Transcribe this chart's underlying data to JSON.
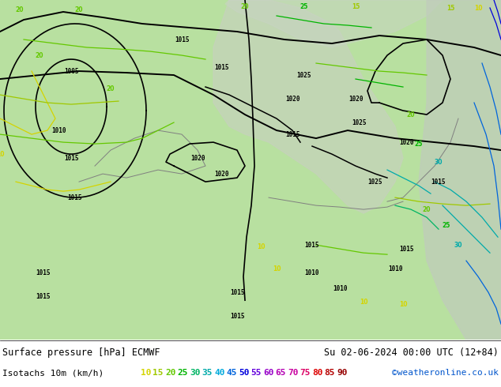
{
  "title_left": "Surface pressure [hPa] ECMWF",
  "title_right": "Su 02-06-2024 00:00 UTC (12+84)",
  "legend_label": "Isotachs 10m (km/h)",
  "copyright": "©weatheronline.co.uk",
  "isotach_values": [
    10,
    15,
    20,
    25,
    30,
    35,
    40,
    45,
    50,
    55,
    60,
    65,
    70,
    75,
    80,
    85,
    90
  ],
  "isotach_colors": [
    "#d4d400",
    "#a0c800",
    "#64c800",
    "#00b400",
    "#00b464",
    "#00aaaa",
    "#00aadc",
    "#0064dc",
    "#0000dc",
    "#6400dc",
    "#9600c8",
    "#b400b4",
    "#c800a0",
    "#dc0064",
    "#dc0000",
    "#b40000",
    "#960000"
  ],
  "map_bg_land": "#b8e0a0",
  "map_bg_sea": "#c8d4c8",
  "bottom_bg": "#ffffff",
  "title_font_size": 8.5,
  "legend_font_size": 8.0,
  "fig_width": 6.34,
  "fig_height": 4.9,
  "dpi": 100
}
